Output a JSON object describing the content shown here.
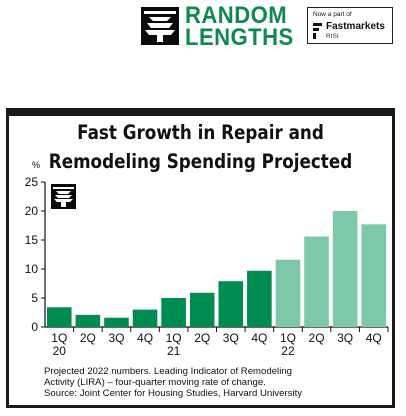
{
  "header": {
    "brand_line1": "RANDOM",
    "brand_line2": "LENGTHS",
    "partner_prefix": "Now a part of",
    "partner_name": "Fastmarkets",
    "partner_sub": "RISI",
    "logo_icon": "tree-icon"
  },
  "colors": {
    "dark_green": "#008c50",
    "light_green": "#7dc8a6",
    "brand_green": "#0e8a4e"
  },
  "chart_data": {
    "type": "bar",
    "title_line1": "Fast Growth in Repair and",
    "title_line2": "Remodeling Spending Projected",
    "ylabel": "%",
    "ylim": [
      0,
      25
    ],
    "yticks": [
      0,
      5,
      10,
      15,
      20,
      25
    ],
    "categories": [
      "1Q 20",
      "2Q 20",
      "3Q 20",
      "4Q 20",
      "1Q 21",
      "2Q 21",
      "3Q 21",
      "4Q 21",
      "1Q 22",
      "2Q 22",
      "3Q 22",
      "4Q 22"
    ],
    "quarter_labels": [
      "1Q",
      "2Q",
      "3Q",
      "4Q",
      "1Q",
      "2Q",
      "3Q",
      "4Q",
      "1Q",
      "2Q",
      "3Q",
      "4Q"
    ],
    "year_labels": [
      "20",
      "21",
      "22"
    ],
    "values": [
      3.4,
      2.1,
      1.6,
      3.0,
      5.0,
      5.9,
      7.9,
      9.7,
      11.6,
      15.6,
      20.0,
      17.7
    ],
    "projected_from_index": 8,
    "grid": false
  },
  "notes": {
    "line1": "Projected 2022 numbers. Leading Indicator of Remodeling",
    "line2": "Activity (LIRA) – four-quarter moving rate of change.",
    "line3": "Source: Joint Center for Housing Studies, Harvard University"
  }
}
